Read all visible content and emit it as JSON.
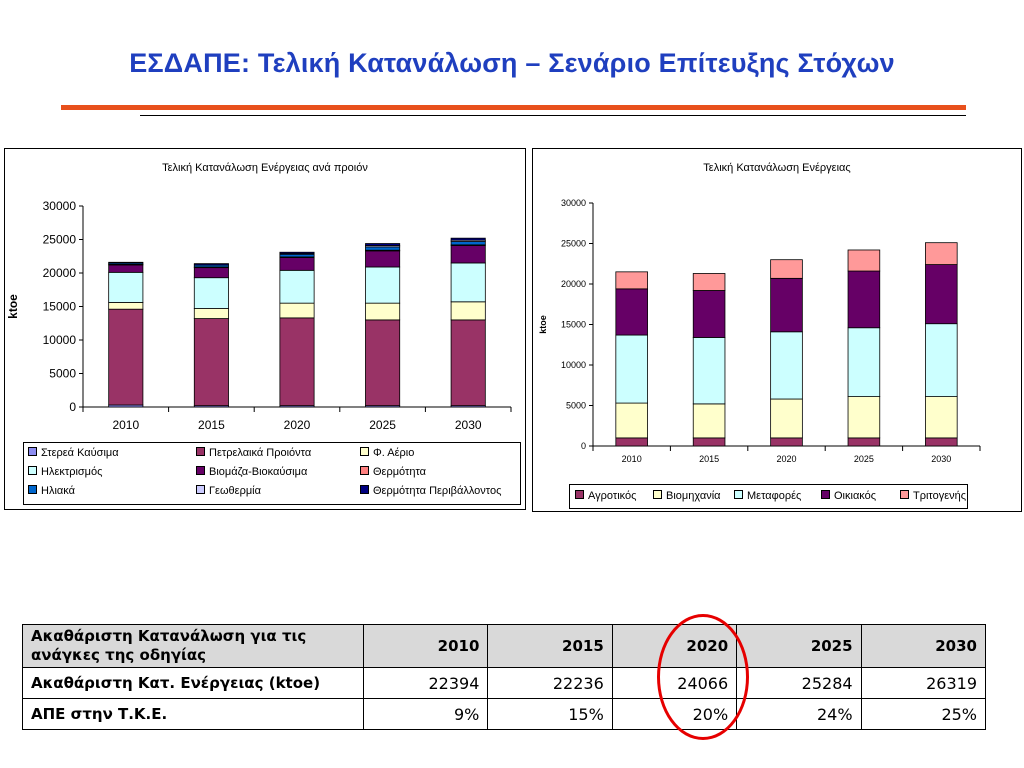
{
  "slide": {
    "title": "ΕΣΔΑΠΕ: Τελική Κατανάλωση – Σενάριο Επίτευξης Στόχων"
  },
  "chart_data": [
    {
      "type": "bar",
      "stacked": true,
      "title": "Τελική Κατανάλωση Ενέργειας ανά προιόν",
      "ylabel": "ktoe",
      "xlabel": "",
      "ylim": [
        0,
        30000
      ],
      "yticks": [
        0,
        5000,
        10000,
        15000,
        20000,
        25000,
        30000
      ],
      "ytick_labels": [
        "0",
        "5000",
        "10000",
        "15000",
        "20000",
        "25000",
        "30000"
      ],
      "grid": false,
      "legend_position": "bottom",
      "categories": [
        "2010",
        "2015",
        "2020",
        "2025",
        "2030"
      ],
      "series": [
        {
          "name": "Στερεά Καύσιμα",
          "color": "#8c8cf0",
          "values": [
            300,
            200,
            200,
            200,
            200
          ]
        },
        {
          "name": "Πετρελαικά Προιόντα",
          "color": "#993366",
          "values": [
            14300,
            13000,
            13100,
            12800,
            12800
          ]
        },
        {
          "name": "Φ. Αέριο",
          "color": "#ffffcc",
          "values": [
            1000,
            1500,
            2200,
            2500,
            2700
          ]
        },
        {
          "name": "Ηλεκτρισμός",
          "color": "#ccffff",
          "values": [
            4500,
            4600,
            4900,
            5400,
            5800
          ]
        },
        {
          "name": "Βιομάζα-Βιοκαύσιμα",
          "color": "#660066",
          "values": [
            1100,
            1500,
            1900,
            2400,
            2600
          ]
        },
        {
          "name": "Θερμότητα",
          "color": "#ff8080",
          "values": [
            100,
            100,
            100,
            100,
            100
          ]
        },
        {
          "name": "Ηλιακά",
          "color": "#0066cc",
          "values": [
            200,
            300,
            400,
            500,
            500
          ]
        },
        {
          "name": "Γεωθερμία",
          "color": "#ccccff",
          "values": [
            0,
            0,
            100,
            200,
            200
          ]
        },
        {
          "name": "Θερμότητα Περιβάλλοντος",
          "color": "#000080",
          "values": [
            100,
            200,
            200,
            300,
            300
          ]
        }
      ]
    },
    {
      "type": "bar",
      "stacked": true,
      "title": "Τελική Κατανάλωση Ενέργειας",
      "ylabel": "ktoe",
      "xlabel": "",
      "ylim": [
        0,
        30000
      ],
      "yticks": [
        0,
        5000,
        10000,
        15000,
        20000,
        25000,
        30000
      ],
      "ytick_labels": [
        "0",
        "5000",
        "10000",
        "15000",
        "20000",
        "25000",
        "30000"
      ],
      "grid": false,
      "legend_position": "bottom",
      "categories": [
        "2010",
        "2015",
        "2020",
        "2025",
        "2030"
      ],
      "series": [
        {
          "name": "Αγροτικός",
          "color": "#993366",
          "values": [
            1000,
            1000,
            1000,
            1000,
            1000
          ]
        },
        {
          "name": "Βιομηχανία",
          "color": "#ffffcc",
          "values": [
            4300,
            4200,
            4800,
            5100,
            5100
          ]
        },
        {
          "name": "Μεταφορές",
          "color": "#ccffff",
          "values": [
            8400,
            8200,
            8300,
            8500,
            9000
          ]
        },
        {
          "name": "Οικιακός",
          "color": "#660066",
          "values": [
            5700,
            5800,
            6600,
            7000,
            7300
          ]
        },
        {
          "name": "Τριτογενής",
          "color": "#ff9999",
          "values": [
            2100,
            2100,
            2300,
            2600,
            2700
          ]
        }
      ]
    },
    {
      "type": "table",
      "columns": [
        "Ακαθάριστη Κατανάλωση για τις ανάγκες της οδηγίας",
        "2010",
        "2015",
        "2020",
        "2025",
        "2030"
      ],
      "rows": [
        {
          "label": "Ακαθάριστη Κατ. Ενέργειας (ktoe)",
          "values": [
            "22394",
            "22236",
            "24066",
            "25284",
            "26319"
          ]
        },
        {
          "label": "ΑΠΕ στην Τ.Κ.Ε.",
          "values": [
            "9%",
            "15%",
            "20%",
            "24%",
            "25%"
          ]
        }
      ]
    }
  ]
}
